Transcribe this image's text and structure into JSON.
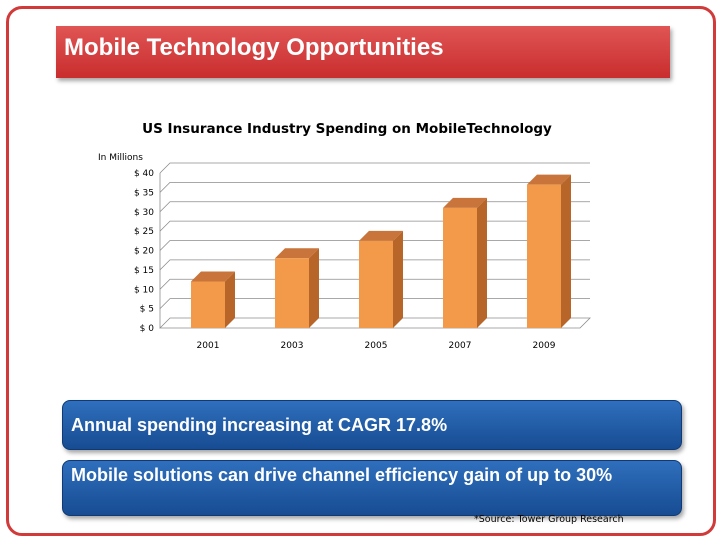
{
  "slide": {
    "title": "Mobile Technology Opportunities",
    "callouts": [
      "Annual spending increasing at CAGR 17.8%",
      "Mobile solutions can drive channel efficiency gain of up to 30%"
    ],
    "source": "*Source: Tower Group Research"
  },
  "colors": {
    "title_bar": "#d93f3f",
    "frame": "#d23a3a",
    "callout": "#2563ad",
    "bar_front": "#f39a4a",
    "bar_side": "#b8652a",
    "bar_top": "#c8743a"
  },
  "chart_data": {
    "type": "bar",
    "title": "US Insurance Industry Spending on MobileTechnology",
    "ylabel": "In Millions",
    "categories": [
      "2001",
      "2003",
      "2005",
      "2007",
      "2009"
    ],
    "values": [
      12,
      18,
      22.5,
      31,
      37
    ],
    "ylim": [
      0,
      40
    ],
    "yticks": [
      0,
      5,
      10,
      15,
      20,
      25,
      30,
      35,
      40
    ],
    "ytick_labels": [
      "$ 0",
      "$ 5",
      "$ 10",
      "$ 15",
      "$ 20",
      "$ 25",
      "$ 30",
      "$ 35",
      "$ 40"
    ],
    "grid": true,
    "legend": "none",
    "style": "3d"
  }
}
